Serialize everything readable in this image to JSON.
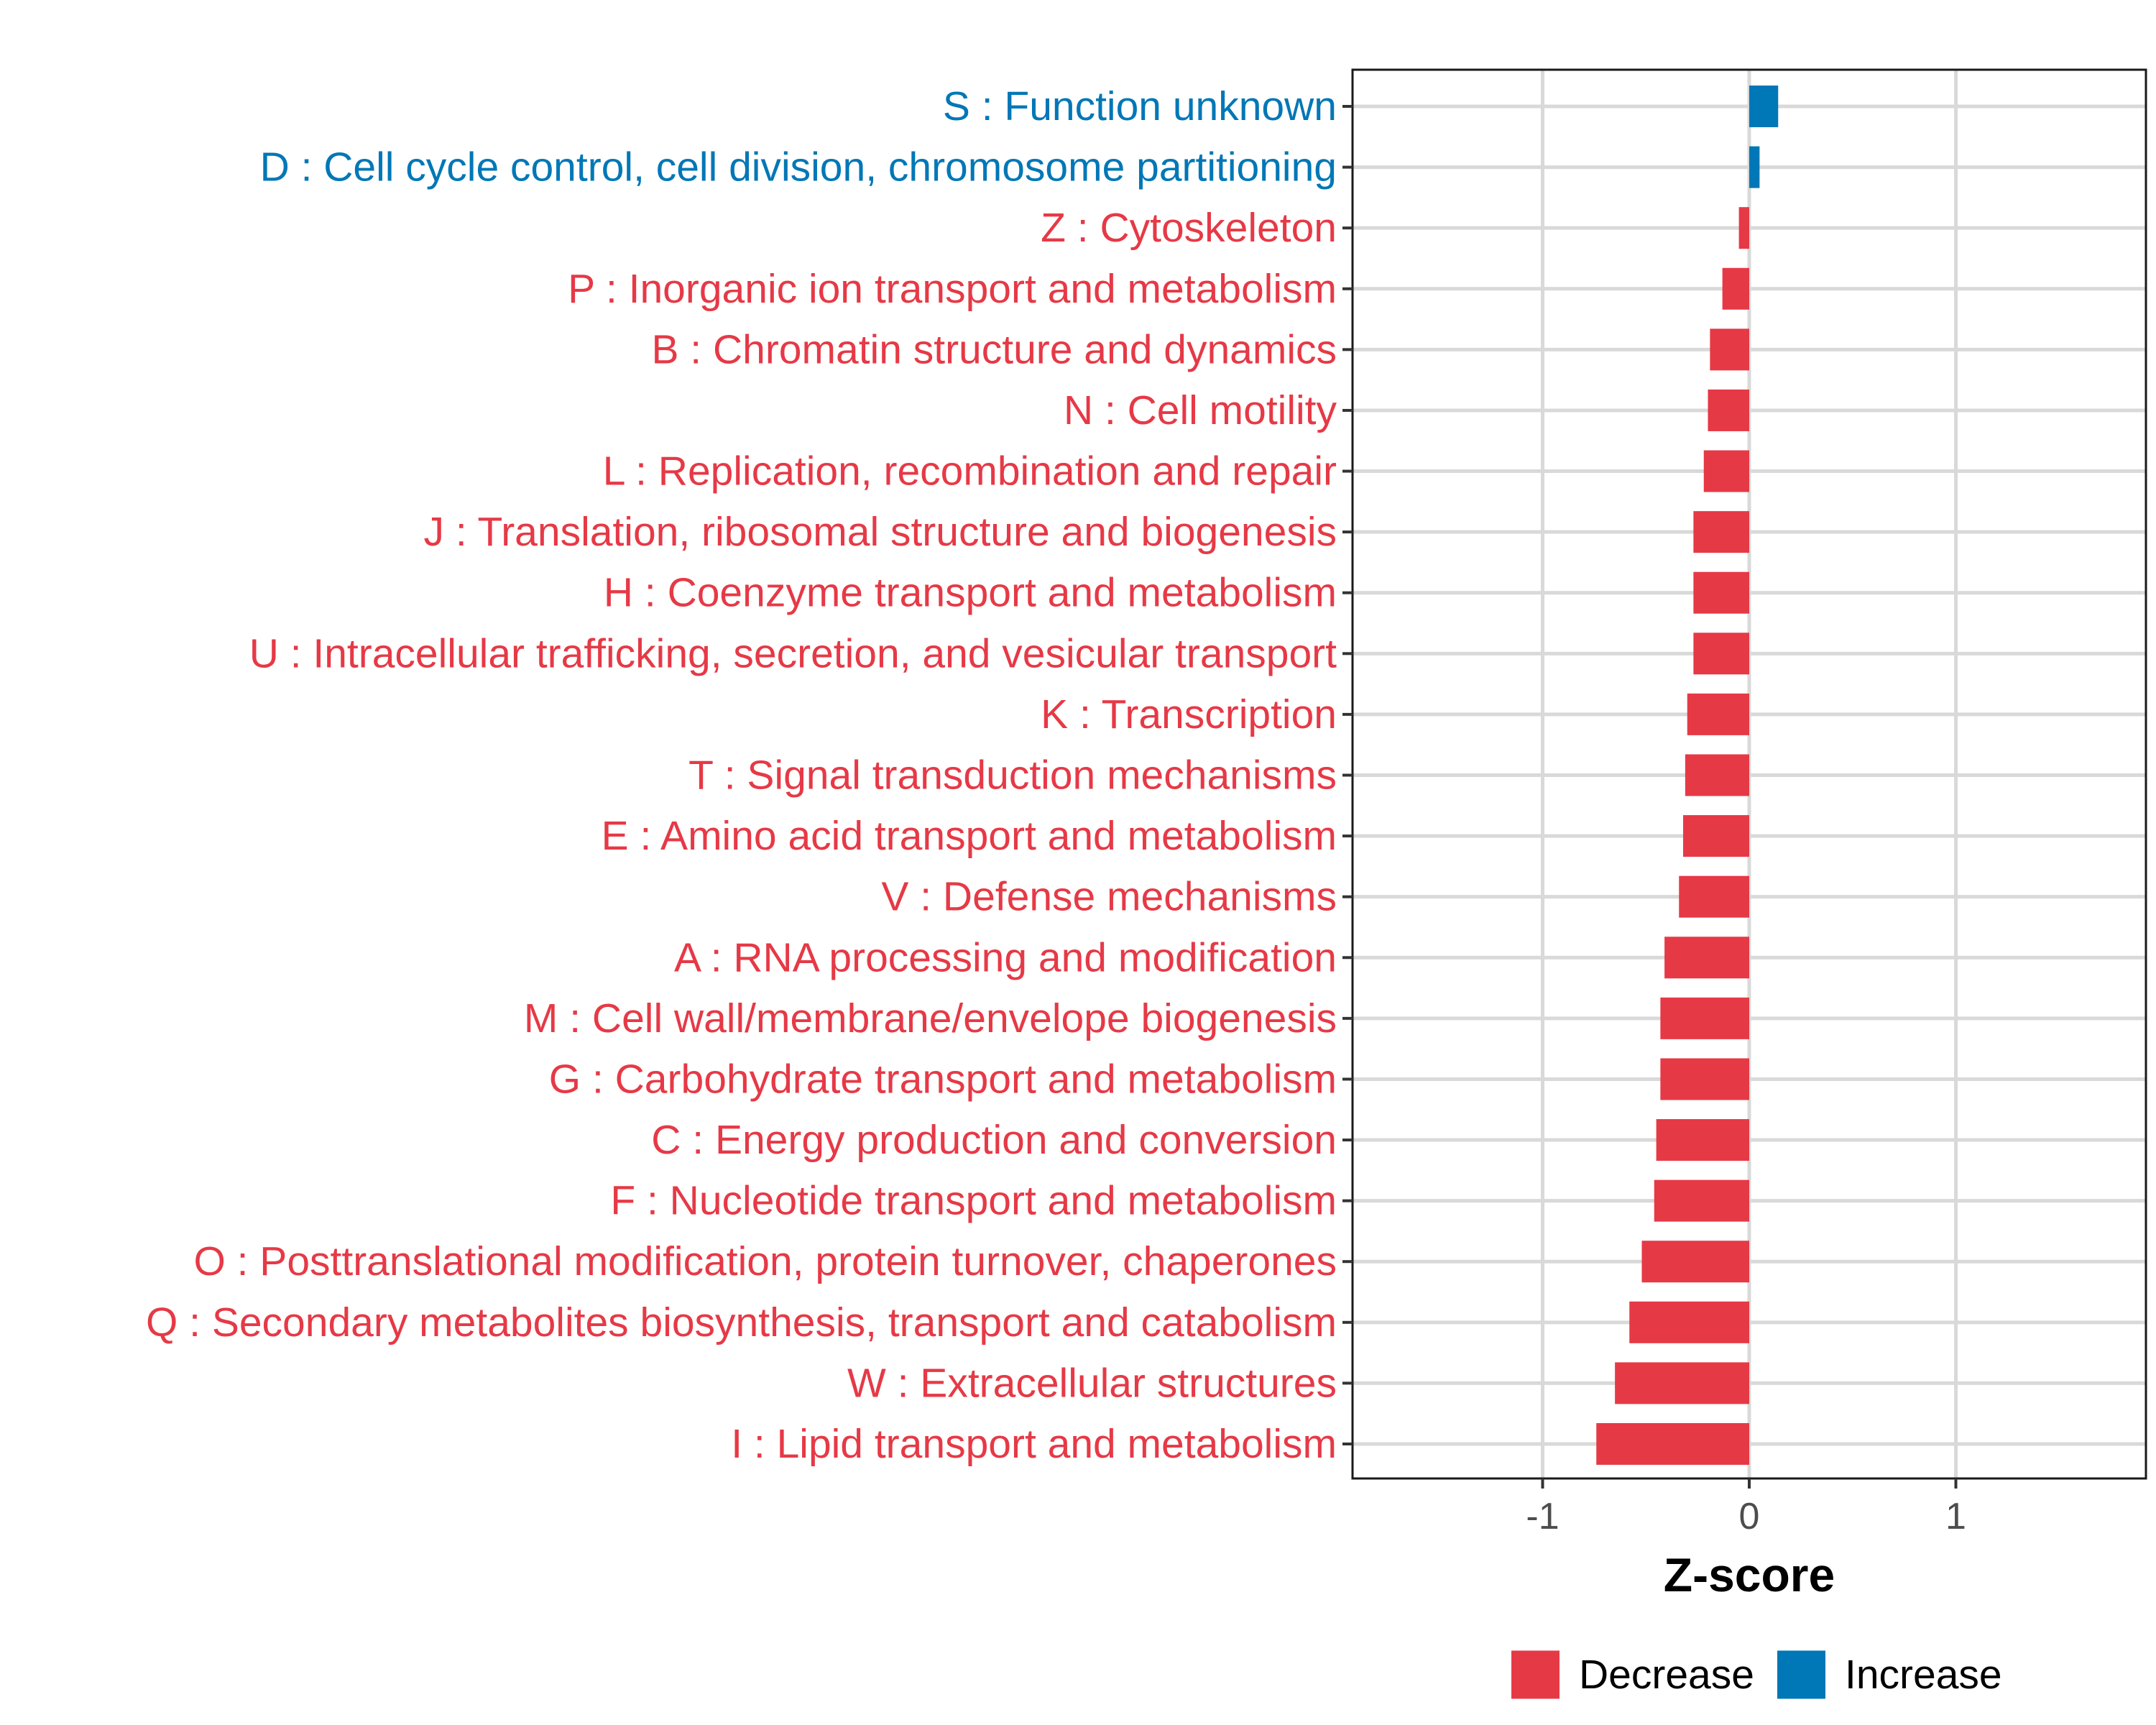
{
  "chart_data": {
    "type": "bar",
    "orientation": "horizontal",
    "categories": [
      "S : Function unknown",
      "D : Cell cycle control, cell division, chromosome partitioning",
      "Z : Cytoskeleton",
      "P : Inorganic ion transport and metabolism",
      "B : Chromatin structure and dynamics",
      "N : Cell motility",
      "L : Replication, recombination and repair",
      "J : Translation, ribosomal structure and biogenesis",
      "H : Coenzyme transport and metabolism",
      "U : Intracellular trafficking, secretion, and vesicular transport",
      "K : Transcription",
      "T : Signal transduction mechanisms",
      "E : Amino acid transport and metabolism",
      "V : Defense mechanisms",
      "A : RNA processing and modification",
      "M : Cell wall/membrane/envelope biogenesis",
      "G : Carbohydrate transport and metabolism",
      "C : Energy production and conversion",
      "F : Nucleotide transport and metabolism",
      "O : Posttranslational modification, protein turnover, chaperones",
      "Q : Secondary metabolites biosynthesis, transport and catabolism",
      "W : Extracellular structures",
      "I : Lipid transport and metabolism"
    ],
    "values": [
      0.14,
      0.05,
      -0.05,
      -0.13,
      -0.19,
      -0.2,
      -0.22,
      -0.27,
      -0.27,
      -0.27,
      -0.3,
      -0.31,
      -0.32,
      -0.34,
      -0.41,
      -0.43,
      -0.43,
      -0.45,
      -0.46,
      -0.52,
      -0.58,
      -0.65,
      -0.74
    ],
    "groups": [
      "Increase",
      "Increase",
      "Decrease",
      "Decrease",
      "Decrease",
      "Decrease",
      "Decrease",
      "Decrease",
      "Decrease",
      "Decrease",
      "Decrease",
      "Decrease",
      "Decrease",
      "Decrease",
      "Decrease",
      "Decrease",
      "Decrease",
      "Decrease",
      "Decrease",
      "Decrease",
      "Decrease",
      "Decrease",
      "Decrease"
    ],
    "xlabel": "Z-score",
    "xlim": [
      -1.92,
      1.92
    ],
    "xticks": [
      -1,
      0,
      1
    ],
    "xtick_labels": [
      "-1",
      "0",
      "1"
    ],
    "grid": true,
    "legend": {
      "position": "bottom",
      "entries": [
        {
          "name": "Decrease",
          "color": "#e63946"
        },
        {
          "name": "Increase",
          "color": "#0077b6"
        }
      ]
    },
    "colors": {
      "Decrease": "#e63946",
      "Increase": "#0077b6"
    }
  }
}
